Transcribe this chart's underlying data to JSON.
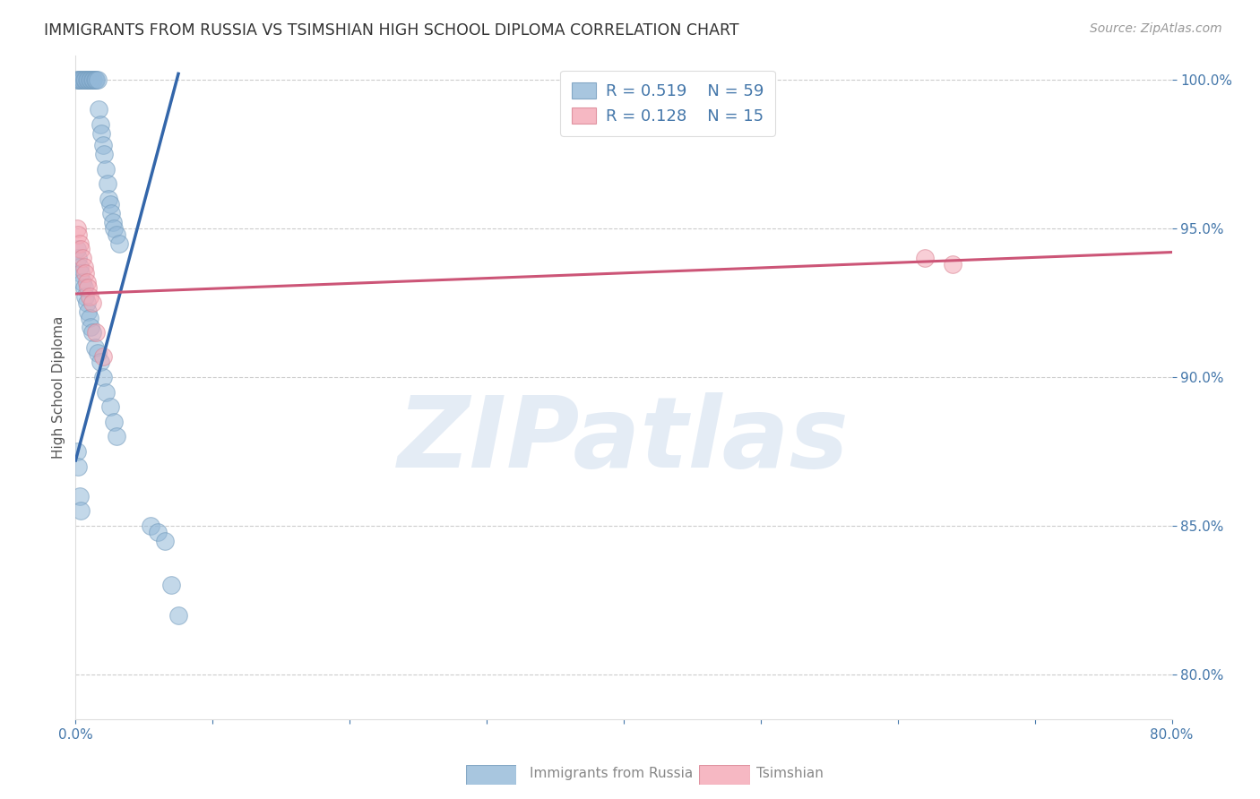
{
  "title": "IMMIGRANTS FROM RUSSIA VS TSIMSHIAN HIGH SCHOOL DIPLOMA CORRELATION CHART",
  "source": "Source: ZipAtlas.com",
  "ylabel": "High School Diploma",
  "watermark": "ZIPatlas",
  "legend_blue_r": "R = 0.519",
  "legend_blue_n": "N = 59",
  "legend_pink_r": "R = 0.128",
  "legend_pink_n": "N = 15",
  "legend_blue_label": "Immigrants from Russia",
  "legend_pink_label": "Tsimshian",
  "xlim": [
    0.0,
    0.8
  ],
  "ylim": [
    0.785,
    1.008
  ],
  "yticks": [
    0.8,
    0.85,
    0.9,
    0.95,
    1.0
  ],
  "xticks": [
    0.0,
    0.1,
    0.2,
    0.3,
    0.4,
    0.5,
    0.6,
    0.7,
    0.8
  ],
  "blue_scatter_x": [
    0.001,
    0.002,
    0.003,
    0.004,
    0.005,
    0.006,
    0.007,
    0.008,
    0.009,
    0.01,
    0.011,
    0.012,
    0.013,
    0.014,
    0.015,
    0.016,
    0.017,
    0.018,
    0.019,
    0.02,
    0.021,
    0.022,
    0.023,
    0.024,
    0.025,
    0.026,
    0.027,
    0.028,
    0.03,
    0.032,
    0.001,
    0.002,
    0.003,
    0.004,
    0.005,
    0.006,
    0.007,
    0.008,
    0.009,
    0.01,
    0.011,
    0.012,
    0.014,
    0.016,
    0.018,
    0.02,
    0.022,
    0.025,
    0.028,
    0.03,
    0.001,
    0.002,
    0.003,
    0.004,
    0.055,
    0.06,
    0.065,
    0.07,
    0.075
  ],
  "blue_scatter_y": [
    1.0,
    1.0,
    1.0,
    1.0,
    1.0,
    1.0,
    1.0,
    1.0,
    1.0,
    1.0,
    1.0,
    1.0,
    1.0,
    1.0,
    1.0,
    1.0,
    0.99,
    0.985,
    0.982,
    0.978,
    0.975,
    0.97,
    0.965,
    0.96,
    0.958,
    0.955,
    0.952,
    0.95,
    0.948,
    0.945,
    0.943,
    0.94,
    0.937,
    0.935,
    0.932,
    0.93,
    0.927,
    0.925,
    0.922,
    0.92,
    0.917,
    0.915,
    0.91,
    0.908,
    0.905,
    0.9,
    0.895,
    0.89,
    0.885,
    0.88,
    0.875,
    0.87,
    0.86,
    0.855,
    0.85,
    0.848,
    0.845,
    0.83,
    0.82
  ],
  "pink_scatter_x": [
    0.001,
    0.002,
    0.003,
    0.004,
    0.005,
    0.006,
    0.007,
    0.008,
    0.009,
    0.01,
    0.012,
    0.015,
    0.02,
    0.62,
    0.64
  ],
  "pink_scatter_y": [
    0.95,
    0.948,
    0.945,
    0.943,
    0.94,
    0.937,
    0.935,
    0.932,
    0.93,
    0.927,
    0.925,
    0.915,
    0.907,
    0.94,
    0.938
  ],
  "blue_line_x": [
    0.0,
    0.075
  ],
  "blue_line_y": [
    0.872,
    1.002
  ],
  "pink_line_x": [
    0.0,
    0.8
  ],
  "pink_line_y": [
    0.928,
    0.942
  ],
  "blue_color": "#93B8D8",
  "blue_edge_color": "#7099BB",
  "blue_line_color": "#3366AA",
  "pink_color": "#F4A7B5",
  "pink_edge_color": "#D98090",
  "pink_line_color": "#CC5577",
  "bg_color": "#FFFFFF",
  "grid_color": "#CCCCCC",
  "title_color": "#333333",
  "axis_label_color": "#555555",
  "tick_color": "#4477AA",
  "marker_size": 200,
  "marker_alpha": 0.55,
  "line_width": 2.2
}
